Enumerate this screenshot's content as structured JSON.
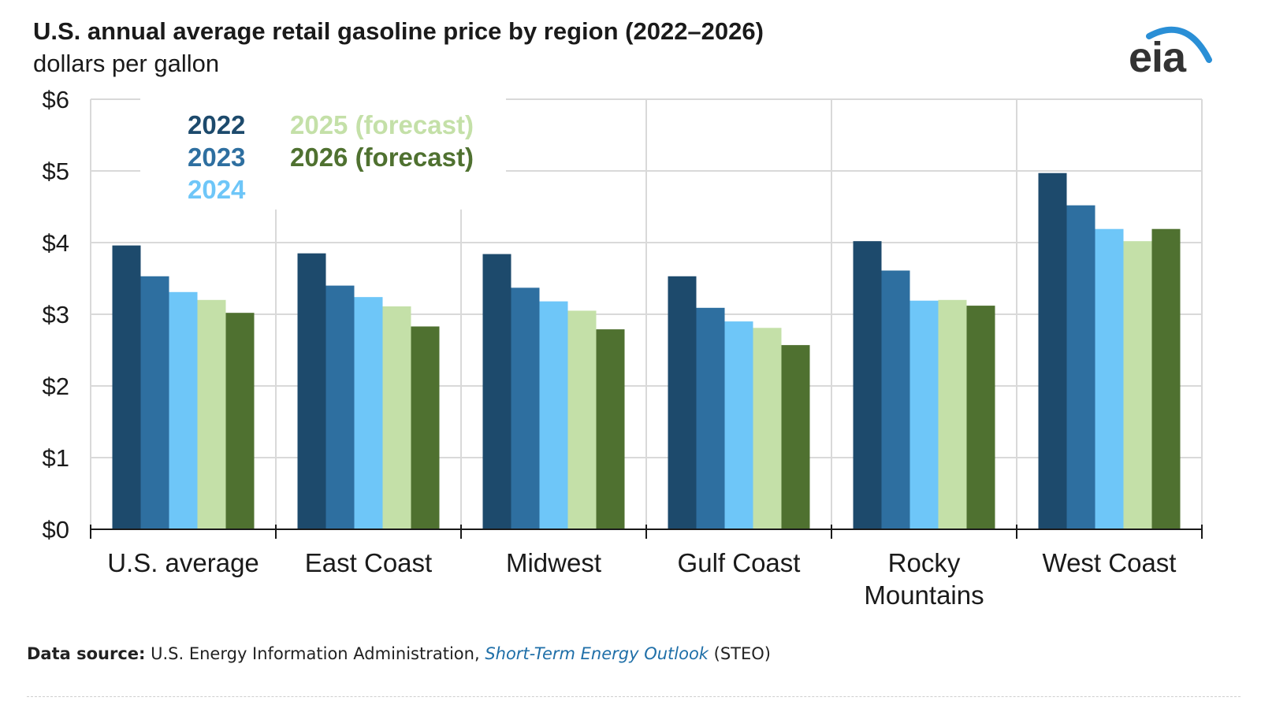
{
  "header": {
    "title": "U.S. annual average retail gasoline price by region (2022–2026)",
    "subtitle": "dollars per gallon"
  },
  "logo": {
    "text": "eia",
    "icon": "eia-logo-icon",
    "accent_color": "#2a8fd6"
  },
  "footer": {
    "source_label": "Data source:",
    "source_text": " U.S. Energy Information Administration, ",
    "source_link": "Short-Term Energy Outlook",
    "source_suffix": " (STEO)"
  },
  "chart_data": {
    "type": "bar",
    "title": "U.S. annual average retail gasoline price by region (2022–2026)",
    "ylabel": "dollars per gallon",
    "xlabel": "",
    "ylim": [
      0,
      6
    ],
    "yticks": [
      0,
      1,
      2,
      3,
      4,
      5,
      6
    ],
    "ytick_labels": [
      "$0",
      "$1",
      "$2",
      "$3",
      "$4",
      "$5",
      "$6"
    ],
    "grid": true,
    "legend_position": "top-left",
    "categories": [
      [
        "U.S. average"
      ],
      [
        "East Coast"
      ],
      [
        "Midwest"
      ],
      [
        "Gulf Coast"
      ],
      [
        "Rocky",
        "Mountains"
      ],
      [
        "West Coast"
      ]
    ],
    "series": [
      {
        "name": "2022",
        "color": "#1d4a6c",
        "values": [
          3.96,
          3.85,
          3.84,
          3.53,
          4.02,
          4.97
        ]
      },
      {
        "name": "2023",
        "color": "#2e6fa0",
        "values": [
          3.53,
          3.4,
          3.37,
          3.09,
          3.61,
          4.52
        ]
      },
      {
        "name": "2024",
        "color": "#6ec6f8",
        "values": [
          3.31,
          3.24,
          3.18,
          2.9,
          3.19,
          4.19
        ]
      },
      {
        "name": "2025 (forecast)",
        "color": "#c4e0a8",
        "values": [
          3.2,
          3.11,
          3.05,
          2.81,
          3.2,
          4.02
        ]
      },
      {
        "name": "2026 (forecast)",
        "color": "#4f7130",
        "values": [
          3.02,
          2.83,
          2.79,
          2.57,
          3.12,
          4.19
        ]
      }
    ]
  }
}
